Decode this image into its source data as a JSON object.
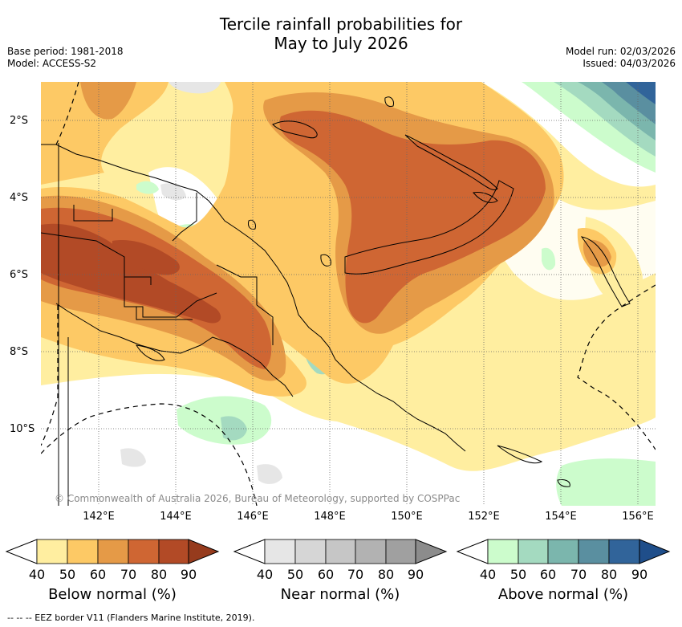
{
  "title": {
    "line1": "Tercile rainfall probabilities for",
    "line2": "May to July 2026"
  },
  "meta": {
    "base_period": "Base period: 1981-2018",
    "model": "Model: ACCESS-S2",
    "model_run": "Model run: 02/03/2026",
    "issued": "Issued: 04/03/2026"
  },
  "axes": {
    "lat_labels": [
      "2°S",
      "4°S",
      "6°S",
      "8°S",
      "10°S"
    ],
    "lon_labels": [
      "142°E",
      "144°E",
      "146°E",
      "148°E",
      "150°E",
      "152°E",
      "154°E",
      "156°E"
    ]
  },
  "credit": "© Commonwealth of Australia 2026, Bureau of Meteorology, supported by COSPPac",
  "colorbars": [
    {
      "title": "Below normal (%)",
      "ticks": [
        "40",
        "50",
        "60",
        "70",
        "80",
        "90"
      ],
      "colors": [
        "#ffeea0",
        "#fdc965",
        "#e59a47",
        "#cf6633",
        "#b24a26",
        "#963b1d"
      ]
    },
    {
      "title": "Near normal (%)",
      "ticks": [
        "40",
        "50",
        "60",
        "70",
        "80",
        "90"
      ],
      "colors": [
        "#e6e6e6",
        "#d6d6d6",
        "#c6c6c6",
        "#b2b2b2",
        "#a0a0a0",
        "#8c8c8c"
      ]
    },
    {
      "title": "Above normal (%)",
      "ticks": [
        "40",
        "50",
        "60",
        "70",
        "80",
        "90"
      ],
      "colors": [
        "#ccfccc",
        "#a4dac0",
        "#7bb6ad",
        "#5a8fa0",
        "#31649a",
        "#1f4e8a"
      ]
    }
  ],
  "footer": "-- -- -- EEZ border V11 (Flanders Marine Institute, 2019)."
}
